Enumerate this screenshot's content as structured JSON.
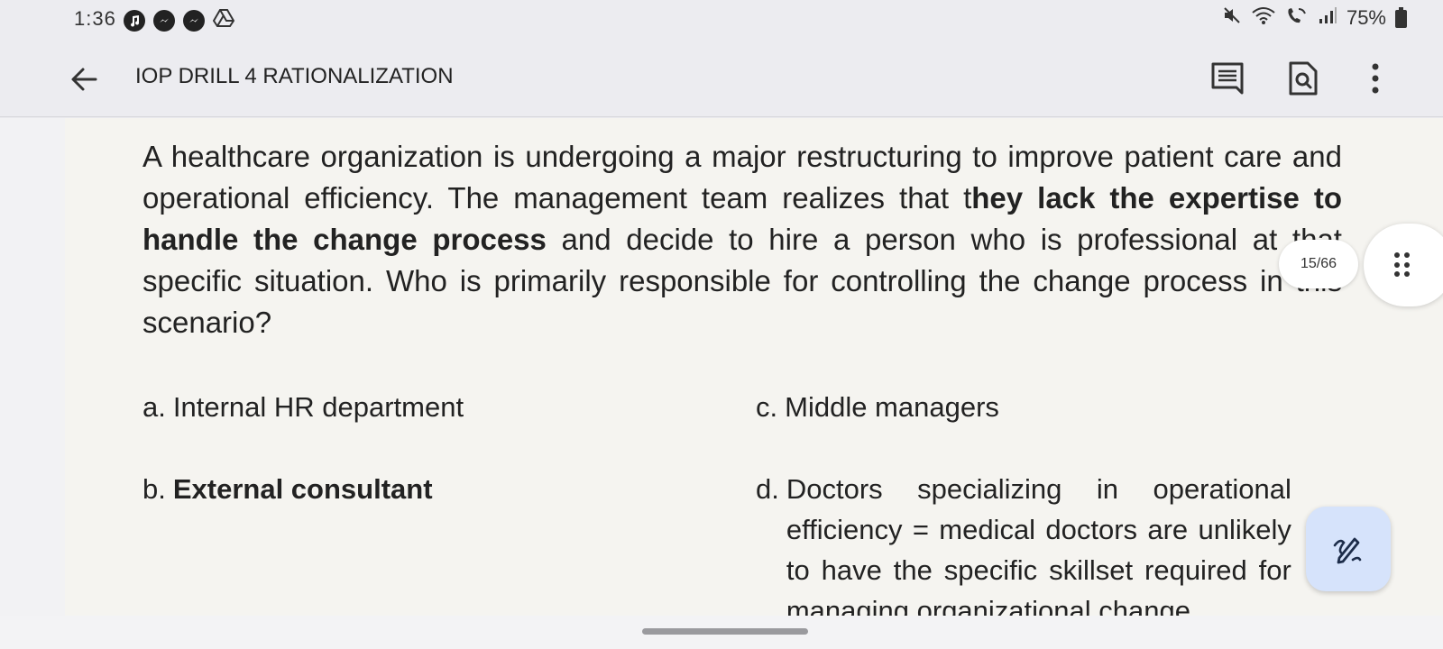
{
  "status_bar": {
    "time": "1:36",
    "battery": "75%",
    "left_icons": [
      "music-note-icon",
      "messenger-icon",
      "messenger-icon",
      "drive-icon"
    ],
    "right_icons": [
      "mute-icon",
      "wifi-icon",
      "wifi-calling-icon",
      "signal-icon"
    ]
  },
  "app_bar": {
    "title": "IOP DRILL 4 RATIONALIZATION"
  },
  "content": {
    "q_part1": "A healthcare organization is undergoing a major restructuring to improve patient care and operational efficiency. The management team realizes that t",
    "q_bold": "hey lack the expertise to handle the change process",
    "q_part2": " and decide to hire a person who is professional at that specific situation. Who is primarily responsible for controlling the change process in this scenario?",
    "options": {
      "a": {
        "letter": "a.",
        "text": "Internal HR department"
      },
      "b": {
        "letter": "b.",
        "text": "External consultant"
      },
      "c": {
        "letter": "c.",
        "text": "Middle managers"
      },
      "d": {
        "letter": "d.",
        "text": "Doctors specializing in operational efficiency = medical doctors are unlikely to have the specific skillset required for managing organizational change"
      }
    }
  },
  "page_indicator": "15/66",
  "colors": {
    "app_bar_bg": "#ececf0",
    "page_bg": "#f5f4f0",
    "fab_bg": "#d6e3fb",
    "text": "#222222"
  }
}
